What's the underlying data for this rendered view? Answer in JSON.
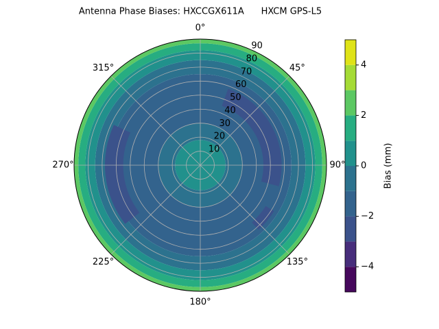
{
  "chart_data": {
    "type": "polar-contour",
    "title": "Antenna Phase Biases: HXCCGX611A      HXCM GPS-L5",
    "rlim": [
      0,
      90
    ],
    "rticks": [
      10,
      20,
      30,
      40,
      50,
      60,
      70,
      80,
      90
    ],
    "thetaticks": [
      {
        "value": 0,
        "label": "0°"
      },
      {
        "value": 45,
        "label": "45°"
      },
      {
        "value": 90,
        "label": "90°"
      },
      {
        "value": 135,
        "label": "135°"
      },
      {
        "value": 180,
        "label": "180°"
      },
      {
        "value": 225,
        "label": "225°"
      },
      {
        "value": 270,
        "label": "270°"
      },
      {
        "value": 315,
        "label": "315°"
      }
    ],
    "grid": true,
    "levels": [
      -5,
      -4,
      -3,
      -2,
      -1,
      0,
      1,
      2,
      3,
      4,
      5
    ],
    "colors": [
      "#46085c",
      "#472d7b",
      "#3b528b",
      "#33638d",
      "#2c728e",
      "#21918c",
      "#27ad81",
      "#5cc863",
      "#a5db36",
      "#dfe318"
    ],
    "rings": [
      {
        "r": [
          0,
          18
        ],
        "bias": 0.5
      },
      {
        "r": [
          18,
          30
        ],
        "bias": -0.5
      },
      {
        "r": [
          30,
          65
        ],
        "bias": -1.5
      },
      {
        "r": [
          65,
          75
        ],
        "bias": -0.5
      },
      {
        "r": [
          75,
          82
        ],
        "bias": 0.5
      },
      {
        "r": [
          82,
          87
        ],
        "bias": 1.5
      },
      {
        "r": [
          87,
          90
        ],
        "bias": 2.5
      }
    ],
    "patches": [
      {
        "az": [
          20,
          105
        ],
        "r": [
          45,
          58
        ],
        "bias": -2.5
      },
      {
        "az": [
          232,
          295
        ],
        "r": [
          55,
          68
        ],
        "bias": -2.5
      },
      {
        "az": [
          122,
          138
        ],
        "r": [
          55,
          62
        ],
        "bias": -2.5
      }
    ],
    "colorbar_label": "Bias (mm)",
    "colorbar_ticks": [
      {
        "value": -4,
        "label": "−4"
      },
      {
        "value": -2,
        "label": "−2"
      },
      0,
      2,
      4
    ]
  }
}
